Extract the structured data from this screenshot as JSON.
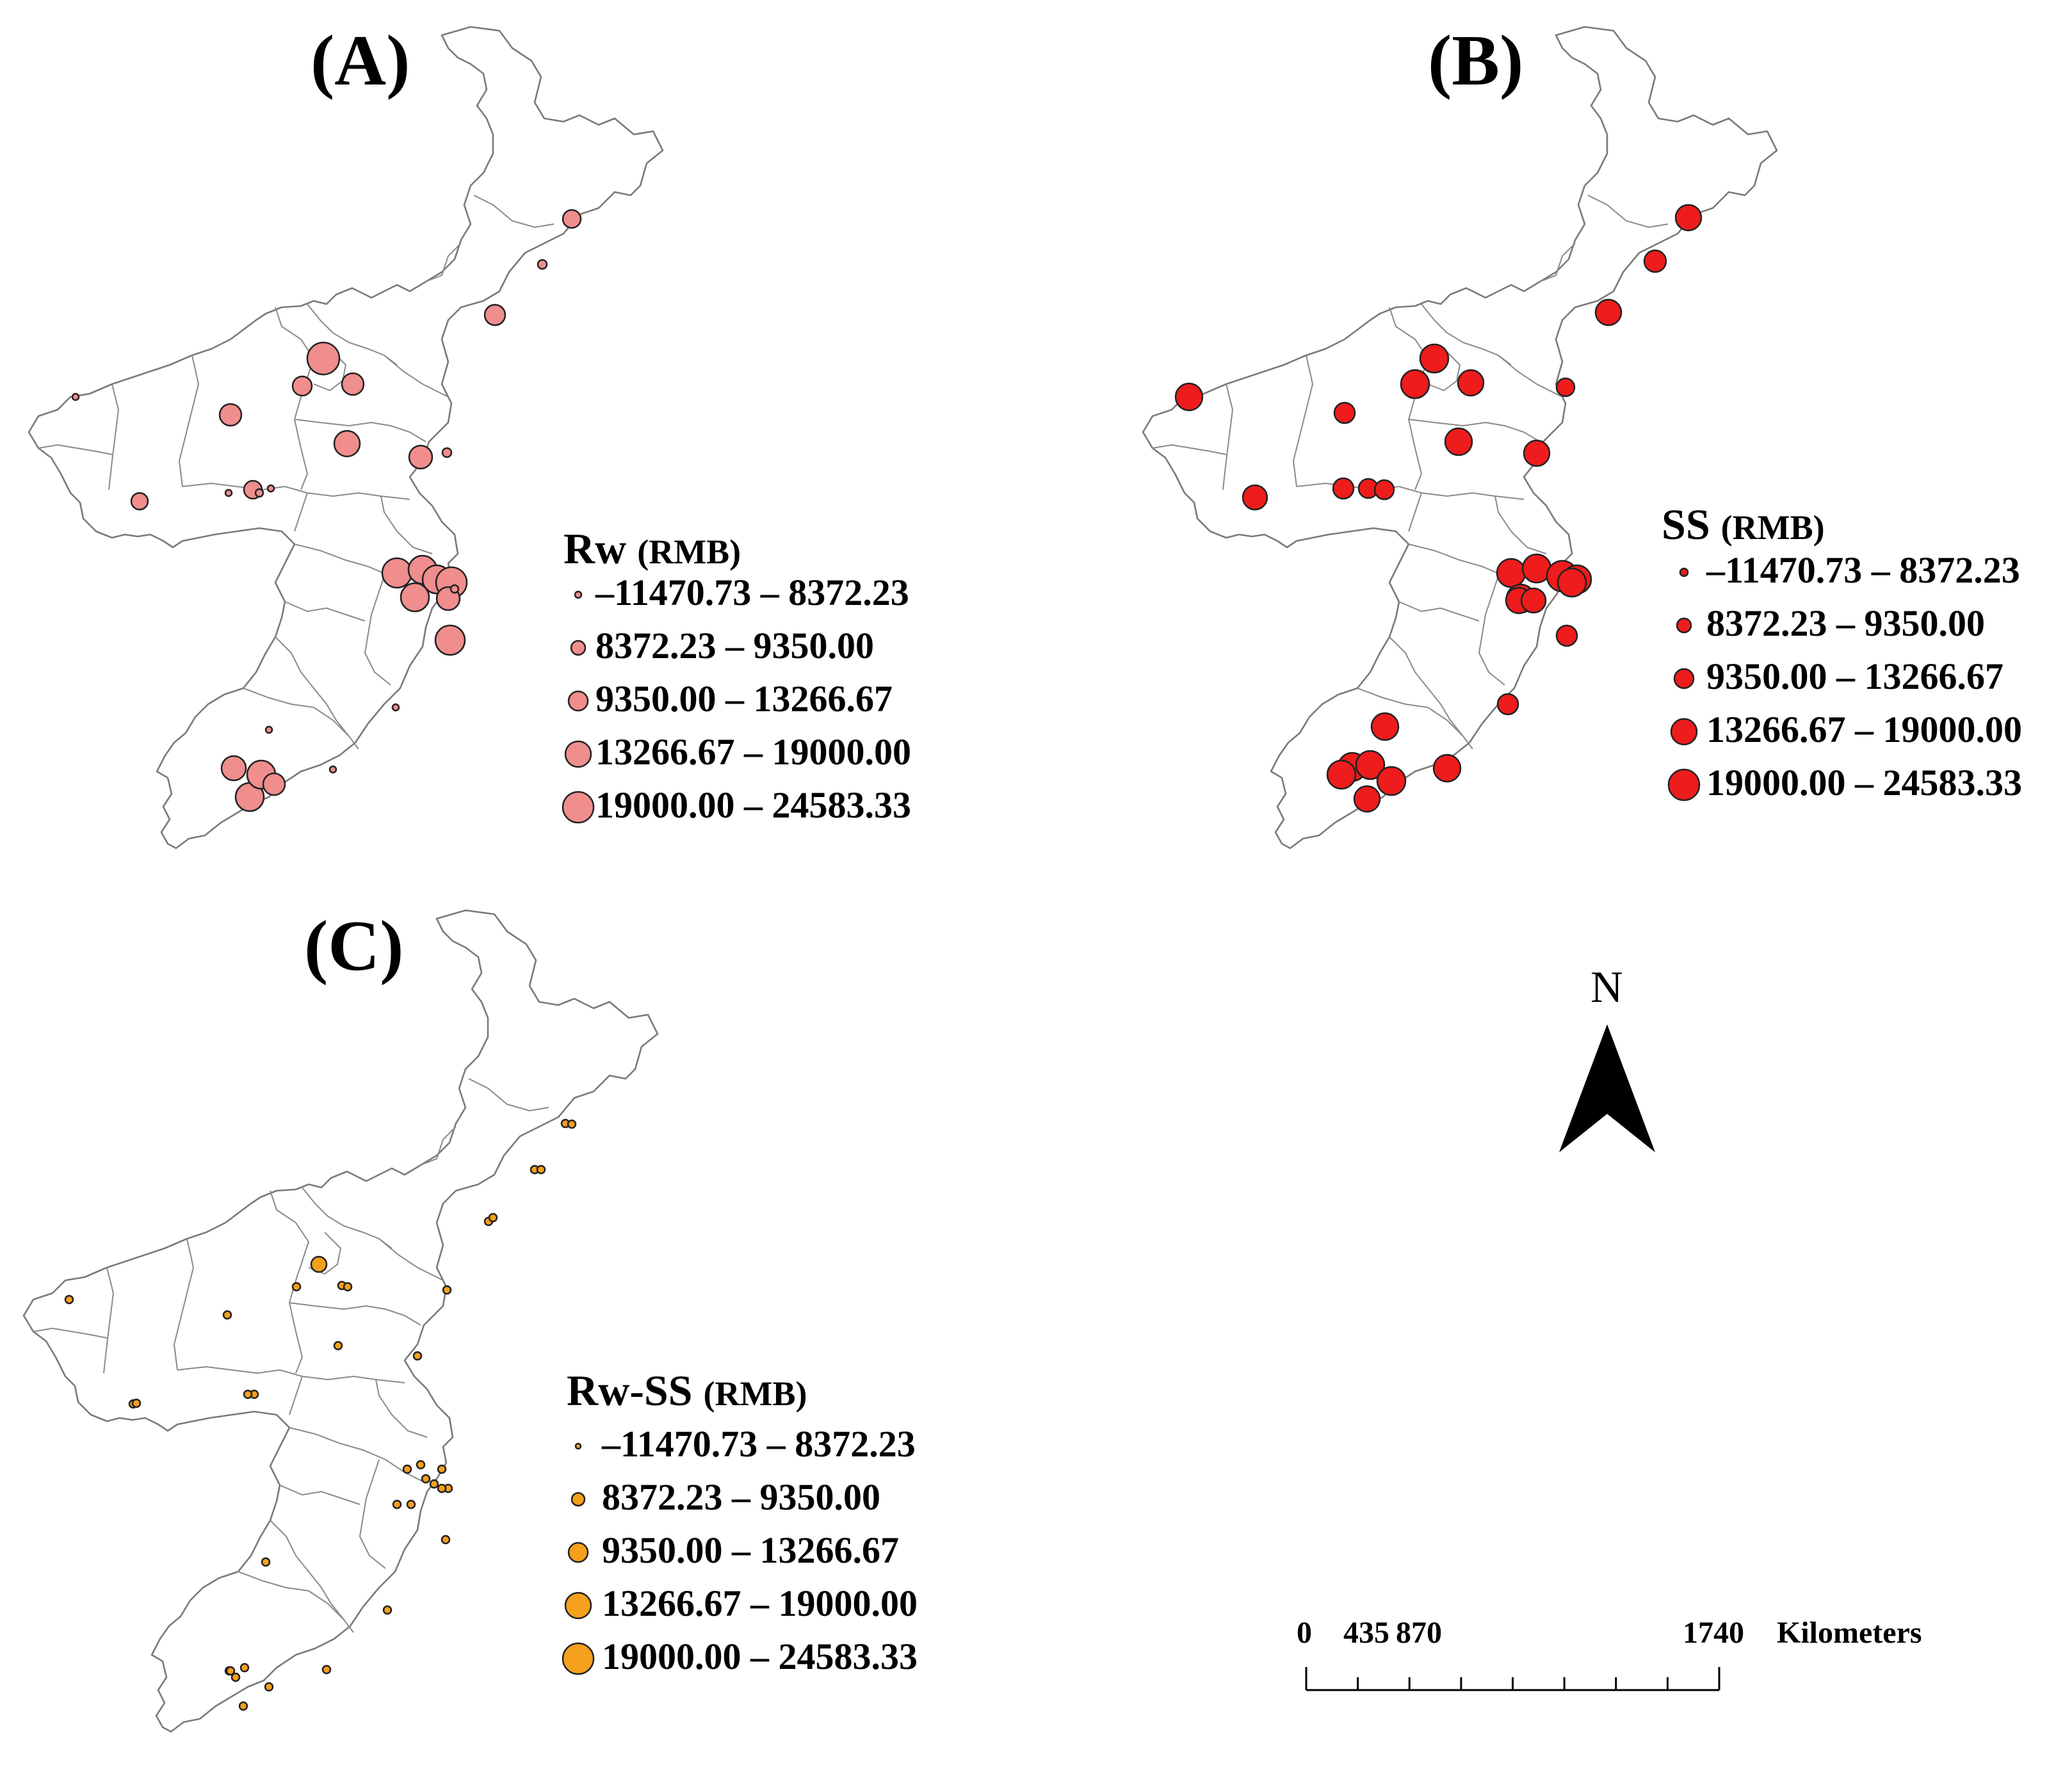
{
  "panels": [
    {
      "id": "A",
      "label": "(A)",
      "legend_title": "Rw",
      "legend_unit": "(RMB)",
      "fill_color": "#f08d8d",
      "classes": [
        "–11470.73 – 8372.23",
        "8372.23 – 9350.00",
        "9350.00 – 13266.67",
        "13266.67 – 19000.00",
        "19000.00 – 24583.33"
      ]
    },
    {
      "id": "B",
      "label": "(B)",
      "legend_title": "SS",
      "legend_unit": "(RMB)",
      "fill_color": "#ee1c1c",
      "classes": [
        "–11470.73 – 8372.23",
        "8372.23 – 9350.00",
        "9350.00 – 13266.67",
        "13266.67 – 19000.00",
        "19000.00 – 24583.33"
      ]
    },
    {
      "id": "C",
      "label": "(C)",
      "legend_title": "Rw-SS",
      "legend_unit": "(RMB)",
      "fill_color": "#f5a01d",
      "classes": [
        "–11470.73 – 8372.23",
        "8372.23 – 9350.00",
        "9350.00 – 13266.67",
        "13266.67 – 19000.00",
        "19000.00 – 24583.33"
      ]
    }
  ],
  "north_arrow": {
    "label": "N"
  },
  "scale_bar": {
    "ticks": [
      "0",
      "435",
      "870",
      "1740"
    ],
    "unit": "Kilometers"
  }
}
